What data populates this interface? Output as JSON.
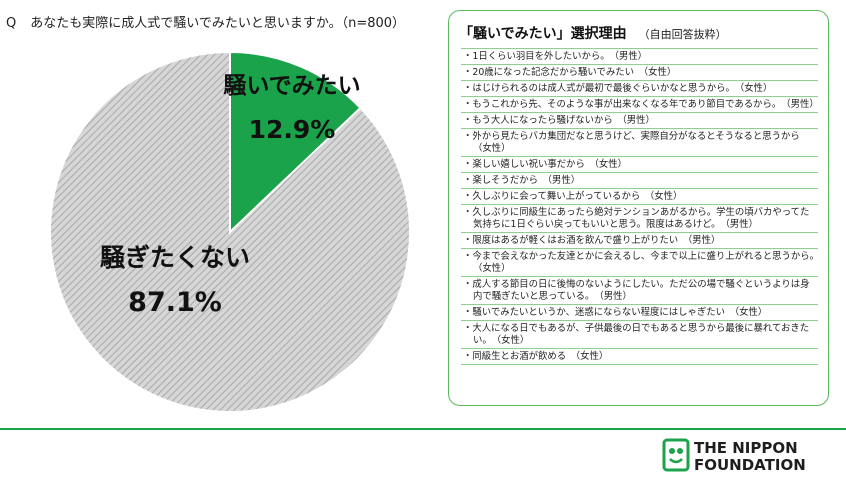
{
  "question": {
    "prefix": "Q",
    "text": "あなたも実際に成人式で騒いでみたいと思いますか。（n=800）"
  },
  "chart_data": {
    "type": "pie",
    "slices": [
      {
        "label": "騒いでみたい",
        "value": 12.9,
        "value_label": "12.9%",
        "color": "#1aa34a"
      },
      {
        "label": "騒ぎたくない",
        "value": 87.1,
        "value_label": "87.1%",
        "color": "#c8c8c8"
      }
    ]
  },
  "reasons_panel": {
    "title": "「騒いでみたい」選択理由",
    "subtitle": "（自由回答抜粋）",
    "items": [
      "・1日くらい羽目を外したいから。　（男性）",
      "・20歳になった記念だから騒いでみたい　（女性）",
      "・はじけられるのは成人式が最初で最後ぐらいかなと思うから。　（女性）",
      "・もうこれから先、そのような事が出来なくなる年であり節目であるから。　（男性）",
      "・もう大人になったら騒げないから　（男性）",
      "・外から見たらバカ集団だなと思うけど、実際自分がなるとそうなると思うから　（女性）",
      "・楽しい嬉しい祝い事だから　（女性）",
      "・楽しそうだから　（男性）",
      "・久しぶりに会って舞い上がっているから　（女性）",
      "・久しぶりに同級生にあったら絶対テンションあがるから。学生の頃バカやってた気持ちに1日ぐらい戻ってもいいと思う。限度はあるけど。　（男性）",
      "・限度はあるが軽くはお酒を飲んで盛り上がりたい　（男性）",
      "・今まで会えなかった友達とかに会えるし、今まで以上に盛り上がれると思うから。　（女性）",
      "・成人する節目の日に後悔のないようにしたい。ただ公の場で騒ぐというよりは身内で騒ぎたいと思っている。　（男性）",
      "・騒いでみたいというか、迷惑にならない程度にはしゃぎたい　（女性）",
      "・大人になる日でもあるが、子供最後の日でもあると思うから最後に暴れておきたい。　（女性）",
      "・同級生とお酒が飲める　（女性）"
    ]
  },
  "brand": {
    "logo_mark": "日本財団",
    "name_line1": "THE NIPPON",
    "name_line2": "FOUNDATION",
    "accent_color": "#1aa34a"
  }
}
